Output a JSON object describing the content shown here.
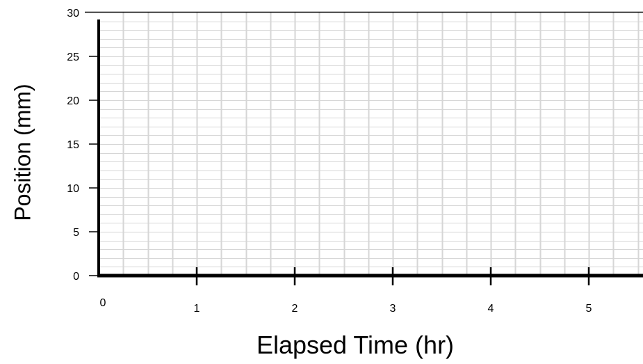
{
  "chart_data": {
    "type": "line",
    "title": "",
    "xlabel": "Elapsed Time (hr)",
    "ylabel": "Position (mm)",
    "xlim": [
      0,
      5.55
    ],
    "ylim": [
      0,
      30
    ],
    "x_ticks": [
      0,
      1,
      2,
      3,
      4,
      5
    ],
    "x_tick_labels": [
      "0",
      "1",
      "2",
      "3",
      "4",
      "5"
    ],
    "y_ticks": [
      0,
      5,
      10,
      15,
      20,
      25,
      30
    ],
    "y_tick_labels": [
      "0",
      "5",
      "10",
      "15",
      "20",
      "25",
      "30"
    ],
    "x_minor_step": 0.25,
    "y_minor_step": 1,
    "grid": true,
    "series": [],
    "colors": {
      "grid": "#d6d6d6",
      "axis": "#000000"
    }
  }
}
